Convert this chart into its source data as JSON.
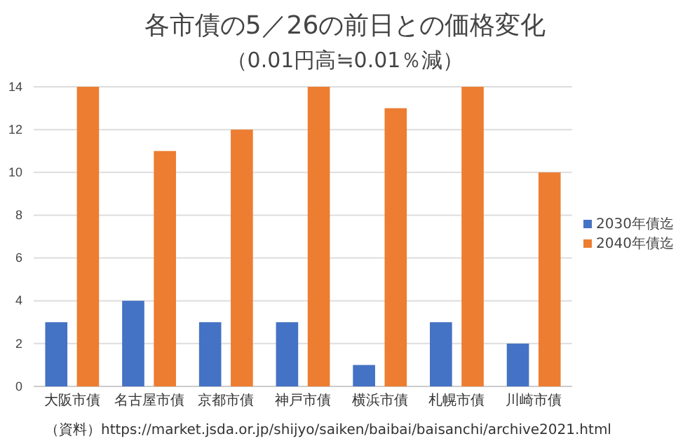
{
  "chart_data": {
    "type": "bar",
    "title": "各市債の5／26の前日との価格変化",
    "subtitle": "（0.01円高≒0.01％減）",
    "categories": [
      "大阪市債",
      "名古屋市債",
      "京都市債",
      "神戸市債",
      "横浜市債",
      "札幌市債",
      "川崎市債"
    ],
    "series": [
      {
        "name": "2030年債迄",
        "color": "#4472c4",
        "values": [
          3,
          4,
          3,
          3,
          1,
          3,
          2
        ]
      },
      {
        "name": "2040年債迄",
        "color": "#ed7d31",
        "values": [
          14,
          11,
          12,
          14,
          13,
          14,
          10
        ]
      }
    ],
    "ylim": [
      0,
      14
    ],
    "yticks": [
      0,
      2,
      4,
      6,
      8,
      10,
      12,
      14
    ],
    "grid": "y",
    "legend": "right",
    "annotations": [
      "（資料）https://market.jsda.or.jp/shijyo/saiken/baibai/baisanchi/archive2021.html"
    ]
  }
}
